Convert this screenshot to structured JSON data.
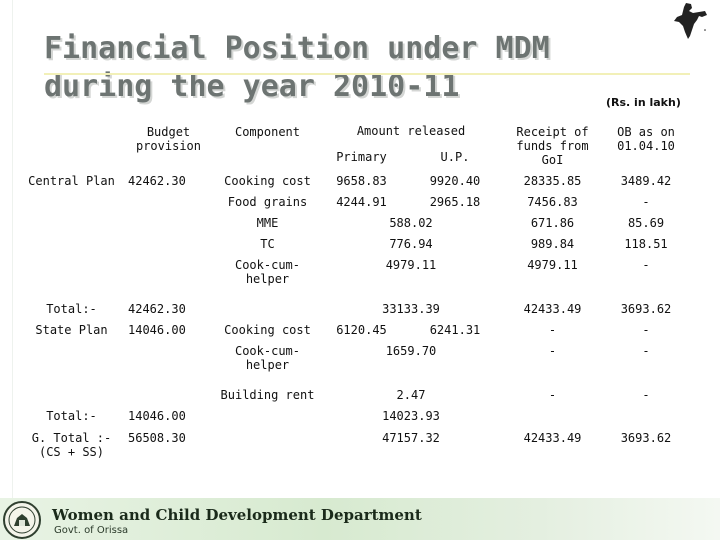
{
  "title": {
    "line1": "Financial Position under MDM",
    "line2": "during the year 2010-11"
  },
  "units": "(Rs. in lakh)",
  "table": {
    "headers": {
      "budget": "Budget provision",
      "component": "Component",
      "amount_released": "Amount released",
      "primary": "Primary",
      "up": "U.P.",
      "receipt": "Receipt of funds from GoI",
      "ob": "OB as on 01.04.10"
    },
    "central": {
      "label": "Central Plan",
      "budget": "42462.30",
      "rows": [
        {
          "component": "Cooking cost",
          "primary": "9658.83",
          "up": "9920.40",
          "receipt": "28335.85",
          "ob": "3489.42"
        },
        {
          "component": "Food grains",
          "primary": "4244.91",
          "up": "2965.18",
          "receipt": "7456.83",
          "ob": "-"
        },
        {
          "component": "MME",
          "amount": "588.02",
          "receipt": "671.86",
          "ob": "85.69"
        },
        {
          "component": "TC",
          "amount": "776.94",
          "receipt": "989.84",
          "ob": "118.51"
        },
        {
          "component": "Cook-cum-helper",
          "amount": "4979.11",
          "receipt": "4979.11",
          "ob": "-"
        }
      ]
    },
    "total1": {
      "label": "Total:-",
      "budget": "42462.30",
      "amount": "33133.39",
      "receipt": "42433.49",
      "ob": "3693.62"
    },
    "state": {
      "label": "State Plan",
      "budget": "14046.00",
      "rows": [
        {
          "component": "Cooking cost",
          "primary": "6120.45",
          "up": "6241.31",
          "receipt": "-",
          "ob": "-"
        },
        {
          "component": "Cook-cum-helper",
          "amount": "1659.70",
          "receipt": "-",
          "ob": "-"
        },
        {
          "component": "Building rent",
          "amount": "2.47",
          "receipt": "-",
          "ob": "-"
        }
      ]
    },
    "total2": {
      "label": "Total:-",
      "budget": "14046.00",
      "amount": "14023.93"
    },
    "gtotal": {
      "label": "G. Total :- (CS + SS)",
      "budget": "56508.30",
      "amount": "47157.32",
      "receipt": "42433.49",
      "ob": "3693.62"
    }
  },
  "footer": {
    "department": "Women and Child Development Department",
    "govt": "Govt. of Orissa"
  }
}
